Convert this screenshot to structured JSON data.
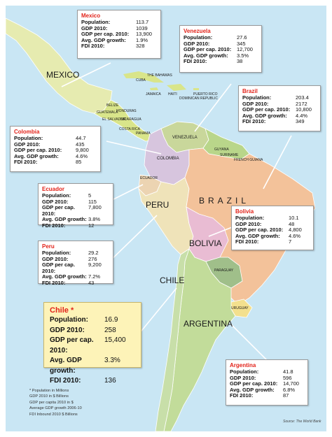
{
  "map_labels": {
    "mexico": "MEXICO",
    "bahamas": "THE BAHAMAS",
    "cuba": "CUBA",
    "jamaica": "JAMAICA",
    "haiti": "HAITI",
    "dominican_republic": "DOMINICAN REPUBLIC",
    "puerto_rico": "PUERTO RICO",
    "belize": "BELIZE",
    "guatemala": "GUATEMALA",
    "honduras": "HONDURAS",
    "el_salvador": "EL SALVADOR",
    "nicaragua": "NICARAGUA",
    "costa_rica": "COSTA RICA",
    "panama": "PANAMA",
    "venezuela": "VENEZUELA",
    "guyana": "GUYANA",
    "suriname": "SURINAME",
    "french_guiana": "FRENCH GUIANA",
    "colombia": "COLOMBIA",
    "ecuador": "ECUADOR",
    "peru": "PERU",
    "brazil": "BRAZIL",
    "bolivia": "BOLIVIA",
    "paraguay": "PARAGUAY",
    "chile": "CHILE",
    "uruguay": "URUGUAY",
    "argentina": "ARGENTINA"
  },
  "boxes": {
    "mexico": {
      "title": "Mexico",
      "rows": [
        {
          "label": "Population:",
          "value": "113.7"
        },
        {
          "label": "GDP 2010:",
          "value": "1039"
        },
        {
          "label": "GDP per cap. 2010:",
          "value": "13,900"
        },
        {
          "label": "Avg. GDP growth:",
          "value": "1.9%"
        },
        {
          "label": "FDI 2010:",
          "value": "328"
        }
      ]
    },
    "venezuela": {
      "title": "Venezuela",
      "rows": [
        {
          "label": "Population:",
          "value": "27.6"
        },
        {
          "label": "GDP 2010:",
          "value": "345"
        },
        {
          "label": "GDP per cap. 2010:",
          "value": "12,700"
        },
        {
          "label": "Avg. GDP growth:",
          "value": "3.5%"
        },
        {
          "label": "FDI 2010:",
          "value": "38"
        }
      ]
    },
    "brazil": {
      "title": "Brazil",
      "rows": [
        {
          "label": "Population:",
          "value": "203.4"
        },
        {
          "label": "GDP 2010:",
          "value": "2172"
        },
        {
          "label": "GDP per cap. 2010:",
          "value": "10,800"
        },
        {
          "label": "Avg. GDP growth:",
          "value": "4.4%"
        },
        {
          "label": "FDI 2010:",
          "value": "349"
        }
      ]
    },
    "colombia": {
      "title": "Colombia",
      "rows": [
        {
          "label": "Population:",
          "value": "44.7"
        },
        {
          "label": "GDP 2010:",
          "value": "435"
        },
        {
          "label": "GDP per cap. 2010:",
          "value": "9,800"
        },
        {
          "label": "Avg. GDP growth:",
          "value": "4.6%"
        },
        {
          "label": "FDI 2010:",
          "value": "85"
        }
      ]
    },
    "ecuador": {
      "title": "Ecuador",
      "rows": [
        {
          "label": "Population:",
          "value": "5"
        },
        {
          "label": "GDP 2010:",
          "value": "115"
        },
        {
          "label": "GDP per cap. 2010:",
          "value": "7,800"
        },
        {
          "label": "Avg. GDP growth:",
          "value": "3.8%"
        },
        {
          "label": "FDI 2010:",
          "value": "12"
        }
      ]
    },
    "bolivia": {
      "title": "Bolivia",
      "rows": [
        {
          "label": "Population:",
          "value": "10.1"
        },
        {
          "label": "GDP 2010:",
          "value": "48"
        },
        {
          "label": "GDP per cap. 2010:",
          "value": "4,800"
        },
        {
          "label": "Avg. GDP growth:",
          "value": "4.6%"
        },
        {
          "label": "FDI 2010:",
          "value": "7"
        }
      ]
    },
    "peru": {
      "title": "Peru",
      "rows": [
        {
          "label": "Population:",
          "value": "29.2"
        },
        {
          "label": "GDP 2010:",
          "value": "276"
        },
        {
          "label": "GDP per cap. 2010:",
          "value": "9,200"
        },
        {
          "label": "Avg. GDP growth:",
          "value": "7.2%"
        },
        {
          "label": "FDI 2010:",
          "value": "43"
        }
      ]
    },
    "chile": {
      "title": "Chile *",
      "rows": [
        {
          "label": "Population:",
          "value": "16.9"
        },
        {
          "label": "GDP 2010:",
          "value": "258"
        },
        {
          "label": "GDP per cap. 2010:",
          "value": "15,400"
        },
        {
          "label": "Avg. GDP growth:",
          "value": "3.3%"
        },
        {
          "label": "FDI 2010:",
          "value": "136"
        }
      ]
    },
    "argentina": {
      "title": "Argentina",
      "rows": [
        {
          "label": "Population:",
          "value": "41.8"
        },
        {
          "label": "GDP 2010:",
          "value": "596"
        },
        {
          "label": "GDP per cap. 2010:",
          "value": "14,700"
        },
        {
          "label": "Avg. GDP growth:",
          "value": "6.8%"
        },
        {
          "label": "FDI 2010:",
          "value": "87"
        }
      ]
    }
  },
  "footnote": [
    "* Population in Millions",
    "GDP 2010 in $ Billions",
    "GDP per capita 2010 in $",
    "Average GDP growth 2006-10",
    "FDI Inbound 2010 $ Billions"
  ],
  "source": "Source: The World Bank",
  "colors": {
    "ocean": "#c9e6f4",
    "mexico": "#e6ebb0",
    "central_america": "#d9e58a",
    "venezuela": "#c9d79b",
    "colombia": "#d7c5de",
    "ecuador": "#ecd4b2",
    "peru": "#efe3b9",
    "brazil": "#f3c29a",
    "bolivia": "#e9bcd3",
    "paraguay": "#a0bf8a",
    "chile": "#c8dfa9",
    "argentina": "#c2dc9a",
    "uruguay": "#f3e08e",
    "box_title": "#e2231a",
    "chile_box_bg": "#fdf3b8"
  }
}
